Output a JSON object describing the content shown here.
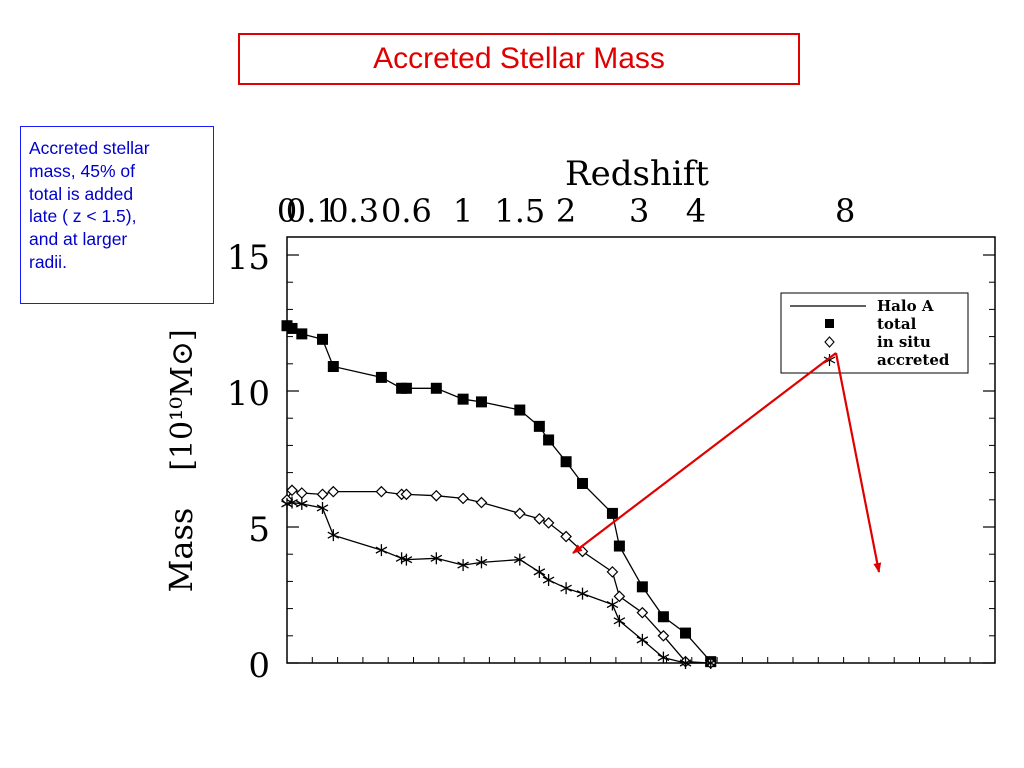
{
  "slide": {
    "title": "Accreted Stellar Mass",
    "note_lines": [
      "Accreted stellar",
      "mass, 45% of",
      "total is added",
      "late ( z < 1.5),",
      "and at larger",
      "radii."
    ]
  },
  "colors": {
    "title_red": "#e00000",
    "note_blue": "#0000cc",
    "arrow_red": "#e00000",
    "plot": "#000000"
  },
  "chart_data": {
    "type": "line",
    "top_axis_label": "Redshift",
    "top_ticks": [
      "0",
      "0.1",
      "0.3",
      "0.6",
      "1",
      "1.5",
      "2",
      "3",
      "4",
      "8"
    ],
    "ylabel_text": "Mass",
    "ylabel_unit": "[10¹⁰M⊙]",
    "ylim": [
      0,
      15
    ],
    "yticks": [
      0,
      5,
      10,
      15
    ],
    "legend": {
      "placement": "top-right",
      "entries": [
        "Halo A",
        "total",
        "in situ",
        "accreted"
      ],
      "symbols": [
        "line",
        "filled-square",
        "open-diamond",
        "asterisk"
      ]
    },
    "x_redshift": [
      0,
      0.02,
      0.06,
      0.15,
      0.2,
      0.45,
      0.57,
      0.6,
      0.8,
      1.0,
      1.15,
      1.5,
      1.7,
      1.8,
      2.0,
      2.2,
      2.6,
      2.7,
      3.05,
      3.4,
      3.8,
      4.3
    ],
    "series": [
      {
        "name": "total",
        "values": [
          12.4,
          12.3,
          12.1,
          11.9,
          10.9,
          10.5,
          10.1,
          10.1,
          10.1,
          9.7,
          9.6,
          9.3,
          8.7,
          8.2,
          7.4,
          6.6,
          5.5,
          4.3,
          2.8,
          1.7,
          1.1,
          0.05
        ]
      },
      {
        "name": "in situ",
        "values": [
          6.0,
          6.35,
          6.25,
          6.2,
          6.3,
          6.3,
          6.2,
          6.2,
          6.15,
          6.05,
          5.9,
          5.5,
          5.3,
          5.15,
          4.65,
          4.1,
          3.35,
          2.45,
          1.85,
          1.0,
          0.05,
          0.0
        ]
      },
      {
        "name": "accreted",
        "values": [
          5.85,
          5.9,
          5.85,
          5.7,
          4.7,
          4.15,
          3.85,
          3.8,
          3.85,
          3.6,
          3.7,
          3.8,
          3.35,
          3.05,
          2.75,
          2.55,
          2.15,
          1.55,
          0.85,
          0.2,
          0.0,
          0.0
        ]
      }
    ]
  }
}
